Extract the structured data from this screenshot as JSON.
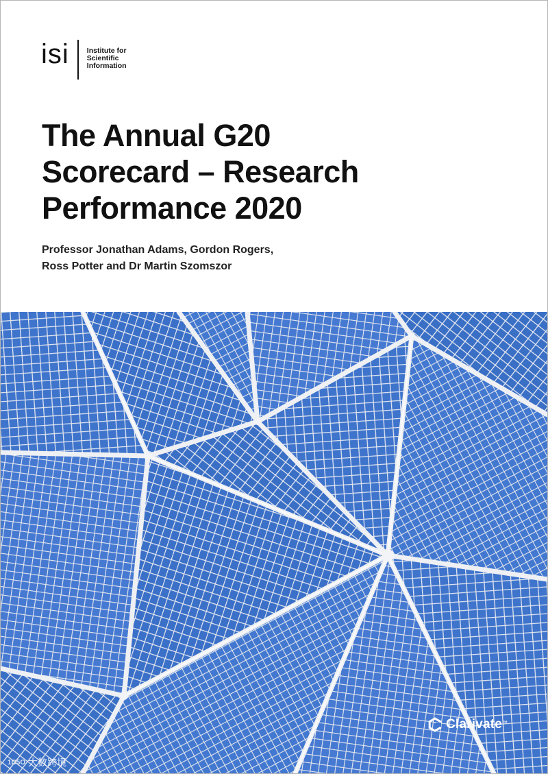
{
  "logo": {
    "mark": "isi",
    "lines": [
      "Institute for",
      "Scientific",
      "Information"
    ]
  },
  "report": {
    "title_lines": [
      "The Annual G20",
      "Scorecard – Research",
      "Performance 2020"
    ],
    "author_lines": [
      "Professor Jonathan Adams, Gordon Rogers,",
      "Ross Potter and Dr Martin Szomszor"
    ]
  },
  "brand": {
    "name": "Clarivate",
    "trademark": "™",
    "icon": "clarivate-logo-icon"
  },
  "watermark": {
    "mark": "1C5O",
    "text": "大数跨境"
  },
  "colors": {
    "image_blue": "#3f74cc",
    "lattice": "#e6e9ee",
    "text": "#111111"
  }
}
